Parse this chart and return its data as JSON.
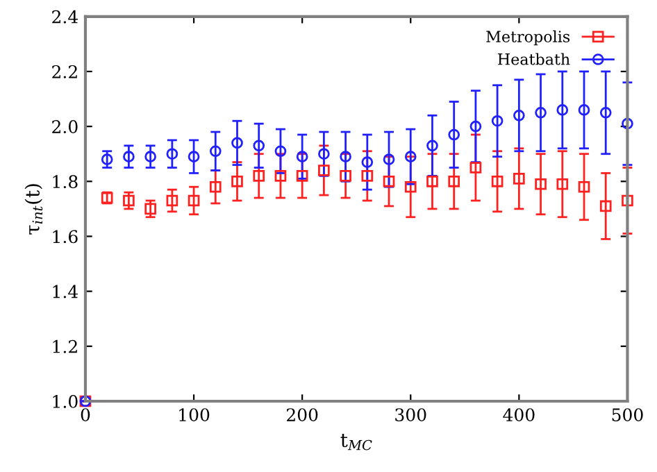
{
  "chart_data": {
    "type": "scatter",
    "xlabel": "t$_{MC}$",
    "ylabel": "τ$_{int}$(t)",
    "x": [
      0,
      20,
      40,
      60,
      80,
      100,
      120,
      140,
      160,
      180,
      200,
      220,
      240,
      260,
      280,
      300,
      320,
      340,
      360,
      380,
      400,
      420,
      440,
      460,
      480,
      500
    ],
    "xlim": [
      0,
      500
    ],
    "xticks": [
      0,
      100,
      200,
      300,
      400,
      500
    ],
    "ylim": [
      1.0,
      2.4
    ],
    "yticks": [
      {
        "value": 1.0,
        "label": "1.0"
      },
      {
        "value": 1.2,
        "label": "1.2"
      },
      {
        "value": 1.4,
        "label": "1.4"
      },
      {
        "value": 1.6,
        "label": "1.6"
      },
      {
        "value": 1.8,
        "label": "1.8"
      },
      {
        "value": 2.0,
        "label": "2.0"
      },
      {
        "value": 2.2,
        "label": "2.2"
      },
      {
        "value": 2.4,
        "label": "2.4"
      }
    ],
    "grid": false,
    "legend": "top right",
    "series": [
      {
        "name": "Metropolis",
        "color": "#ff2020",
        "marker": "square",
        "values": [
          1.0,
          1.74,
          1.73,
          1.7,
          1.73,
          1.73,
          1.78,
          1.8,
          1.82,
          1.82,
          1.82,
          1.84,
          1.82,
          1.82,
          1.8,
          1.78,
          1.8,
          1.8,
          1.85,
          1.8,
          1.81,
          1.79,
          1.79,
          1.78,
          1.71,
          1.73
        ],
        "errors": [
          null,
          0.02,
          0.03,
          0.03,
          0.04,
          0.05,
          0.06,
          0.07,
          0.08,
          0.08,
          0.08,
          0.09,
          0.08,
          0.09,
          0.09,
          0.11,
          0.1,
          0.1,
          0.12,
          0.11,
          0.11,
          0.11,
          0.12,
          0.12,
          0.12,
          0.12
        ]
      },
      {
        "name": "Heatbath",
        "color": "#2020ff",
        "marker": "circle",
        "values": [
          1.0,
          1.88,
          1.89,
          1.89,
          1.9,
          1.89,
          1.91,
          1.94,
          1.93,
          1.91,
          1.89,
          1.9,
          1.89,
          1.87,
          1.88,
          1.89,
          1.93,
          1.97,
          2.0,
          2.02,
          2.04,
          2.05,
          2.06,
          2.06,
          2.05,
          2.01
        ],
        "errors": [
          null,
          0.03,
          0.04,
          0.04,
          0.05,
          0.06,
          0.07,
          0.08,
          0.08,
          0.08,
          0.08,
          0.08,
          0.09,
          0.1,
          0.1,
          0.1,
          0.11,
          0.12,
          0.13,
          0.13,
          0.13,
          0.14,
          0.14,
          0.14,
          0.15,
          0.15
        ]
      }
    ]
  }
}
